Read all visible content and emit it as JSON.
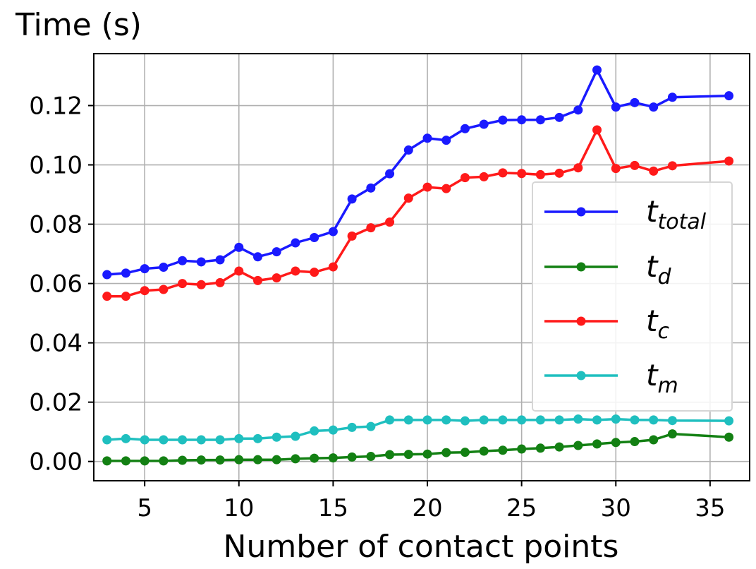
{
  "chart_data": {
    "type": "line",
    "title": "",
    "ylabel": "Time (s)",
    "xlabel": "Number of contact points",
    "xlim": [
      2.3,
      37.1
    ],
    "ylim": [
      -0.0065,
      0.1375
    ],
    "xticks": [
      5,
      10,
      15,
      20,
      25,
      30,
      35
    ],
    "yticks": [
      0.0,
      0.02,
      0.04,
      0.06,
      0.08,
      0.1,
      0.12
    ],
    "ytick_labels": [
      "0.00",
      "0.02",
      "0.04",
      "0.06",
      "0.08",
      "0.10",
      "0.12"
    ],
    "grid": true,
    "legend_position": "center-right",
    "x": [
      3,
      4,
      5,
      6,
      7,
      8,
      9,
      10,
      11,
      12,
      13,
      14,
      15,
      16,
      17,
      18,
      19,
      20,
      21,
      22,
      23,
      24,
      25,
      26,
      27,
      28,
      29,
      30,
      31,
      32,
      33,
      36
    ],
    "series": [
      {
        "name": "t",
        "subscript": "total",
        "color": "#1a1aff",
        "values": [
          0.063,
          0.0635,
          0.065,
          0.0655,
          0.0677,
          0.0673,
          0.068,
          0.0722,
          0.069,
          0.0707,
          0.0737,
          0.0755,
          0.0775,
          0.0885,
          0.0922,
          0.097,
          0.105,
          0.109,
          0.1083,
          0.1122,
          0.1137,
          0.1151,
          0.1152,
          0.1152,
          0.116,
          0.1185,
          0.132,
          0.1195,
          0.121,
          0.1195,
          0.1228,
          0.1233
        ]
      },
      {
        "name": "t",
        "subscript": "d",
        "color": "#138013",
        "values": [
          0.0002,
          0.0002,
          0.0002,
          0.0002,
          0.0004,
          0.0005,
          0.0005,
          0.0006,
          0.0006,
          0.0006,
          0.0009,
          0.0011,
          0.0012,
          0.0015,
          0.0017,
          0.0023,
          0.0024,
          0.0025,
          0.003,
          0.0031,
          0.0035,
          0.0038,
          0.0042,
          0.0045,
          0.0049,
          0.0054,
          0.0059,
          0.0064,
          0.0067,
          0.0073,
          0.0093,
          0.0082
        ]
      },
      {
        "name": "t",
        "subscript": "c",
        "color": "#ff1a1a",
        "values": [
          0.0557,
          0.0557,
          0.0576,
          0.058,
          0.06,
          0.0596,
          0.0603,
          0.0642,
          0.061,
          0.0619,
          0.0642,
          0.0638,
          0.0656,
          0.076,
          0.0788,
          0.0807,
          0.0888,
          0.0925,
          0.092,
          0.0957,
          0.096,
          0.0973,
          0.0971,
          0.0967,
          0.0972,
          0.099,
          0.1118,
          0.0988,
          0.0998,
          0.0979,
          0.0997,
          0.1013
        ]
      },
      {
        "name": "t",
        "subscript": "m",
        "color": "#1fbfbf",
        "values": [
          0.0073,
          0.0077,
          0.0073,
          0.0073,
          0.0073,
          0.0073,
          0.0073,
          0.0077,
          0.0077,
          0.0082,
          0.0085,
          0.0103,
          0.0106,
          0.0115,
          0.0118,
          0.014,
          0.014,
          0.014,
          0.014,
          0.0137,
          0.014,
          0.014,
          0.014,
          0.014,
          0.014,
          0.0143,
          0.014,
          0.0143,
          0.014,
          0.014,
          0.0138,
          0.0137
        ]
      }
    ]
  }
}
